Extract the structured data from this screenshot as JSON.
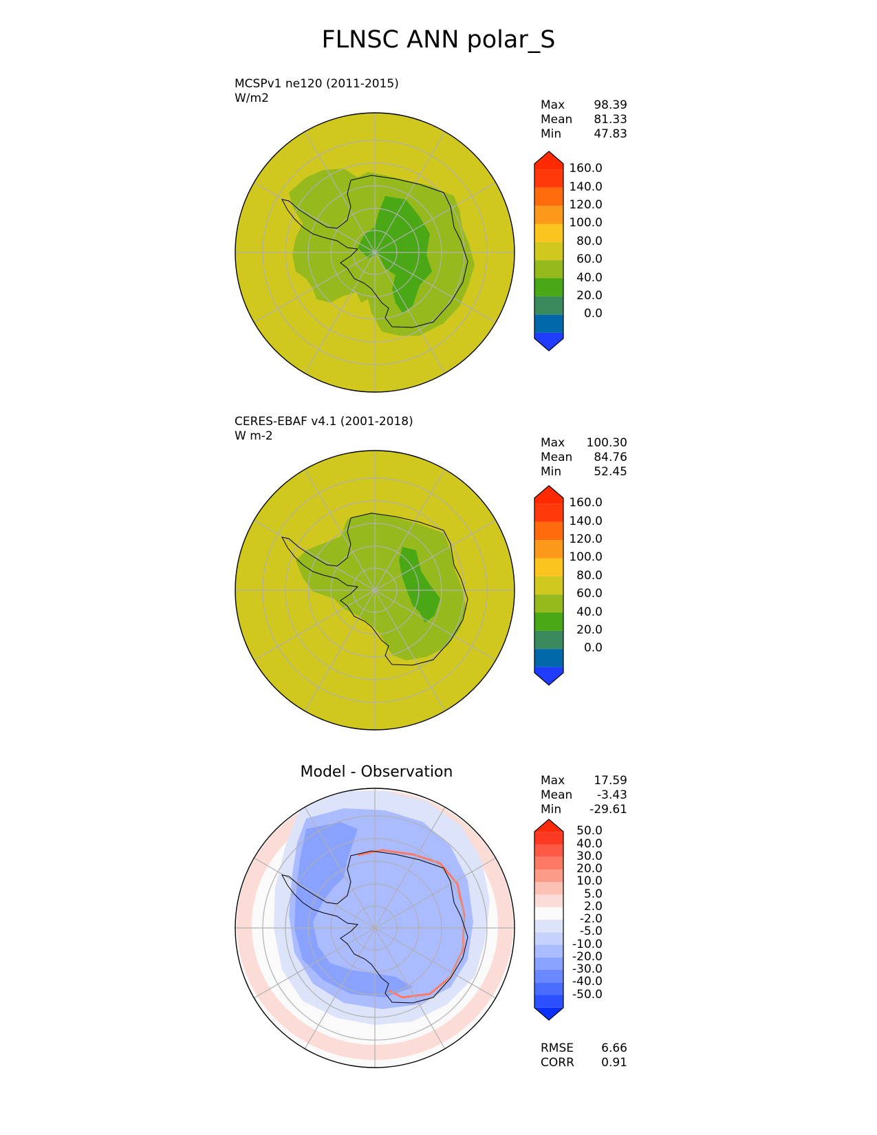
{
  "figure": {
    "title": "FLNSC ANN polar_S"
  },
  "panels": [
    {
      "id": "model",
      "subtitle_line1": "MCSPv1 ne120 (2011-2015)",
      "subtitle_line2": "W/m2",
      "stats": {
        "max_label": "Max",
        "max": "98.39",
        "mean_label": "Mean",
        "mean": "81.33",
        "min_label": "Min",
        "min": "47.83"
      },
      "colorbar": {
        "ticks": [
          "160.0",
          "140.0",
          "120.0",
          "100.0",
          "80.0",
          "60.0",
          "40.0",
          "20.0",
          "0.0"
        ],
        "colors": [
          "#1f3cff",
          "#0068a8",
          "#3a8a5e",
          "#4aa816",
          "#96ba1e",
          "#d0c81e",
          "#fcc41e",
          "#fc981a",
          "#ff6a0a",
          "#ff3a0a",
          "#ff2a00"
        ]
      }
    },
    {
      "id": "obs",
      "subtitle_line1": "CERES-EBAF v4.1 (2001-2018)",
      "subtitle_line2": "W m-2",
      "stats": {
        "max_label": "Max",
        "max": "100.30",
        "mean_label": "Mean",
        "mean": "84.76",
        "min_label": "Min",
        "min": "52.45"
      },
      "colorbar": {
        "ticks": [
          "160.0",
          "140.0",
          "120.0",
          "100.0",
          "80.0",
          "60.0",
          "40.0",
          "20.0",
          "0.0"
        ],
        "colors": [
          "#1f3cff",
          "#0068a8",
          "#3a8a5e",
          "#4aa816",
          "#96ba1e",
          "#d0c81e",
          "#fcc41e",
          "#fc981a",
          "#ff6a0a",
          "#ff3a0a",
          "#ff2a00"
        ]
      }
    },
    {
      "id": "diff",
      "title": "Model - Observation",
      "stats": {
        "max_label": "Max",
        "max": "17.59",
        "mean_label": "Mean",
        "mean": "-3.43",
        "min_label": "Min",
        "min": "-29.61"
      },
      "colorbar": {
        "ticks": [
          "50.0",
          "40.0",
          "30.0",
          "20.0",
          "10.0",
          "5.0",
          "2.0",
          "-2.0",
          "-5.0",
          "-10.0",
          "-20.0",
          "-30.0",
          "-40.0",
          "-50.0"
        ],
        "colors": [
          "#0a30ff",
          "#2a50ff",
          "#4a6cff",
          "#6a88ff",
          "#8aa2ff",
          "#aabcff",
          "#c6d2fa",
          "#dde4fa",
          "#fafafa",
          "#fcdcd6",
          "#fcc0b4",
          "#fc9c88",
          "#fc7a64",
          "#fc5a44",
          "#fc3a24",
          "#ff2a0a"
        ]
      },
      "metrics": {
        "rmse_label": "RMSE",
        "rmse": "6.66",
        "corr_label": "CORR",
        "corr": "0.91"
      }
    }
  ],
  "map_colors": {
    "ocean_fill": "#d0c81e",
    "land_outer": "#96ba1e",
    "land_inner": "#4aa816",
    "diff_background": "#fafafa",
    "diff_blue_light": "#dde4fa",
    "diff_blue_mid": "#aabcff",
    "diff_blue_dark": "#8aa2ff",
    "diff_red_light": "#fcdcd6",
    "gridline": "#b0b0b0"
  }
}
